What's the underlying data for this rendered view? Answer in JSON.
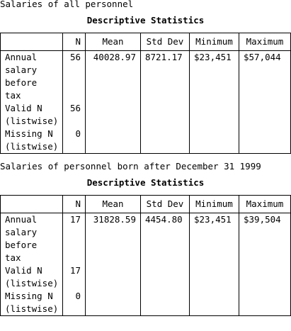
{
  "sections": [
    {
      "caption": "Salaries of all personnel",
      "table_title": "Descriptive Statistics",
      "headers": [
        "",
        "N",
        "Mean",
        "Std Dev",
        "Minimum",
        "Maximum"
      ],
      "rows": [
        {
          "label": "Annual\nsalary\nbefore\ntax",
          "n": "56",
          "mean": "40028.97",
          "std_dev": "8721.17",
          "minimum": "$23,451",
          "maximum": "$57,044"
        },
        {
          "label": "Valid N\n(listwise)",
          "n": "56",
          "mean": "",
          "std_dev": "",
          "minimum": "",
          "maximum": ""
        },
        {
          "label": "Missing N\n(listwise)",
          "n": "0",
          "mean": "",
          "std_dev": "",
          "minimum": "",
          "maximum": ""
        }
      ]
    },
    {
      "caption": "Salaries of personnel born after December 31 1999",
      "table_title": "Descriptive Statistics",
      "headers": [
        "",
        "N",
        "Mean",
        "Std Dev",
        "Minimum",
        "Maximum"
      ],
      "rows": [
        {
          "label": "Annual\nsalary\nbefore\ntax",
          "n": "17",
          "mean": "31828.59",
          "std_dev": "4454.80",
          "minimum": "$23,451",
          "maximum": "$39,504"
        },
        {
          "label": "Valid N\n(listwise)",
          "n": "17",
          "mean": "",
          "std_dev": "",
          "minimum": "",
          "maximum": ""
        },
        {
          "label": "Missing N\n(listwise)",
          "n": "0",
          "mean": "",
          "std_dev": "",
          "minimum": "",
          "maximum": ""
        }
      ]
    }
  ]
}
